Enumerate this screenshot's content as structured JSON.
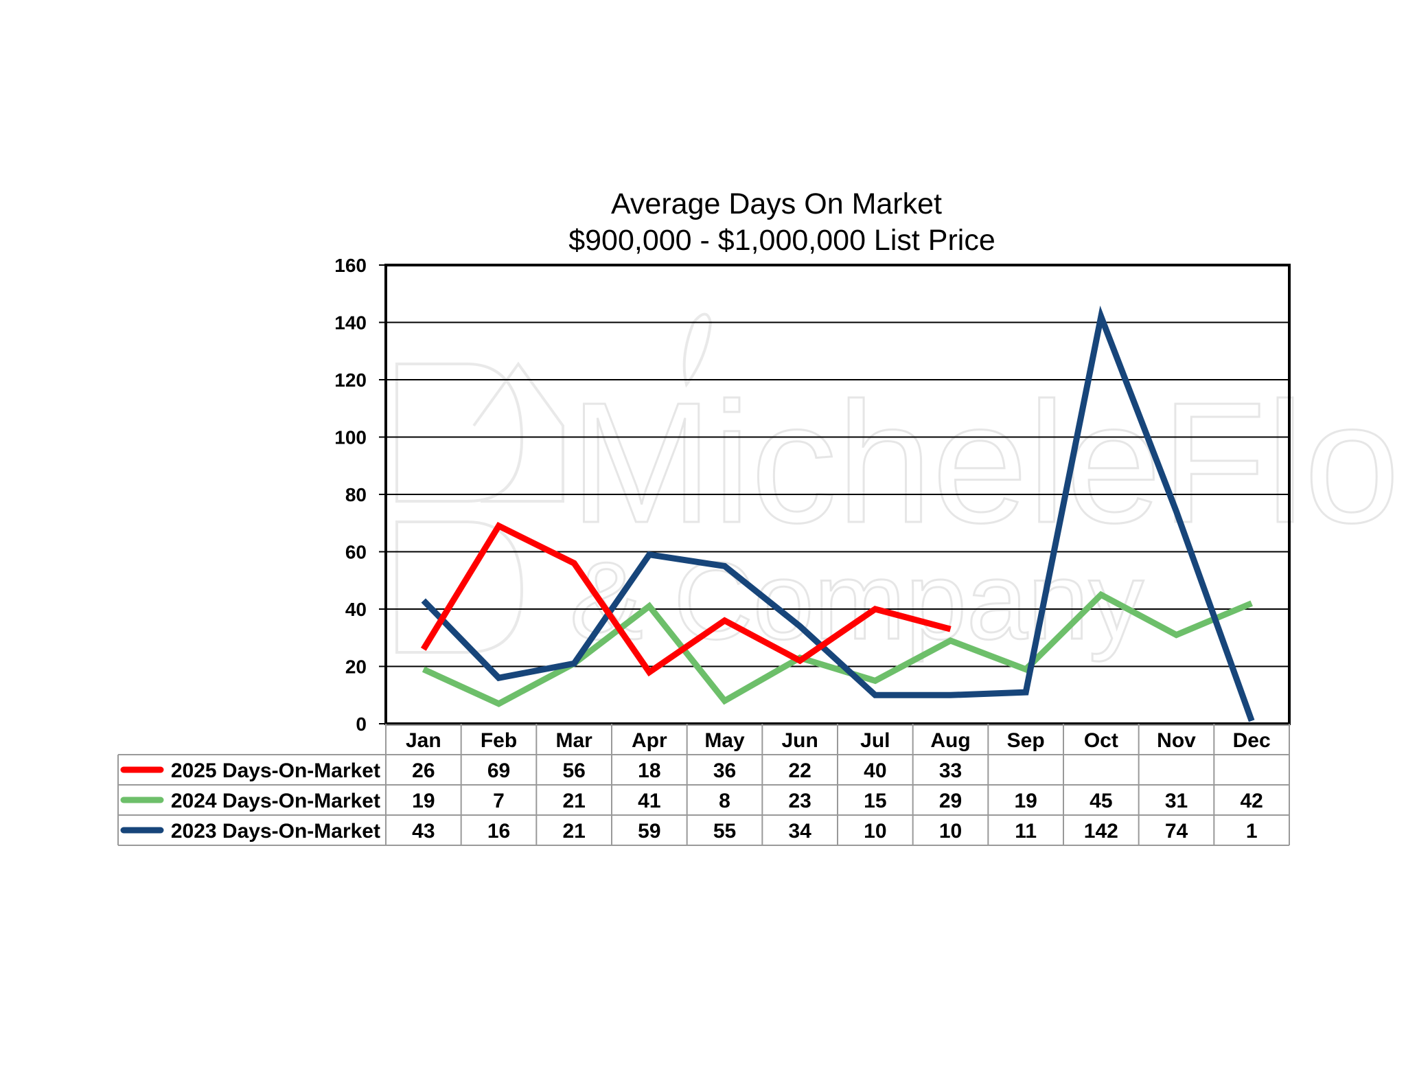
{
  "chart_data": {
    "type": "line",
    "title": "Average Days On Market",
    "subtitle": "$900,000 - $1,000,000 List Price",
    "categories": [
      "Jan",
      "Feb",
      "Mar",
      "Apr",
      "May",
      "Jun",
      "Jul",
      "Aug",
      "Sep",
      "Oct",
      "Nov",
      "Dec"
    ],
    "ylim": [
      0,
      160
    ],
    "yticks": [
      "0",
      "20",
      "40",
      "60",
      "80",
      "100",
      "120",
      "140",
      "160"
    ],
    "grid": true,
    "legend_placement": "data table below chart",
    "series": [
      {
        "name": "2025 Days-On-Market",
        "color": "#ff0000",
        "values": [
          26,
          69,
          56,
          18,
          36,
          22,
          40,
          33,
          null,
          null,
          null,
          null
        ]
      },
      {
        "name": "2024 Days-On-Market",
        "color": "#6dbf6a",
        "values": [
          19,
          7,
          21,
          41,
          8,
          23,
          15,
          29,
          19,
          45,
          31,
          42
        ]
      },
      {
        "name": "2023 Days-On-Market",
        "color": "#17457a",
        "values": [
          43,
          16,
          21,
          59,
          55,
          34,
          10,
          10,
          11,
          142,
          74,
          1
        ]
      }
    ]
  },
  "watermark": {
    "text_line1": "MicheleFlory",
    "text_line2": "& Company",
    "icon": "house-logo-icon"
  }
}
